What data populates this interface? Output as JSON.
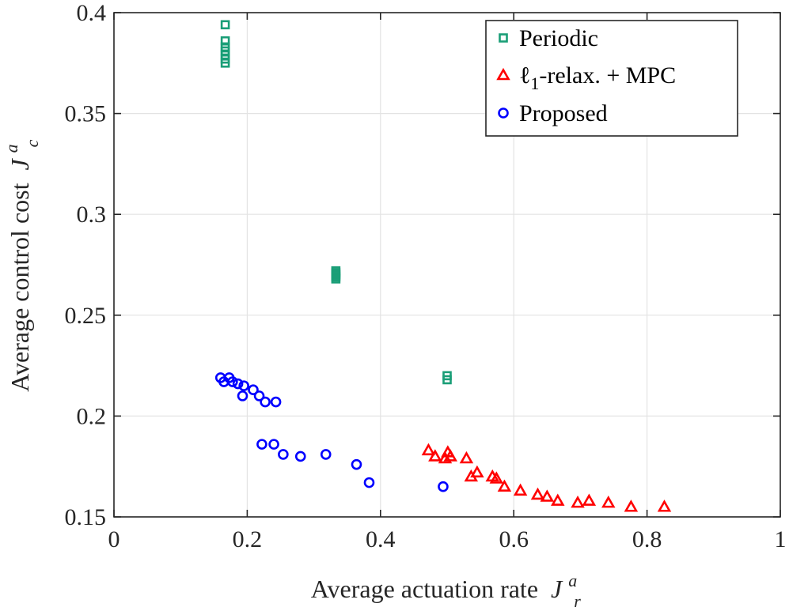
{
  "chart_data": {
    "type": "scatter",
    "xlabel": "Average actuation rate",
    "xlabel_symbol": "J",
    "xlabel_sup": "a",
    "xlabel_sub": "r",
    "ylabel": "Average control cost",
    "ylabel_symbol": "J",
    "ylabel_sup": "a",
    "ylabel_sub": "c",
    "xlim": [
      0,
      1
    ],
    "ylim": [
      0.15,
      0.4
    ],
    "xticks": [
      0,
      0.2,
      0.4,
      0.6,
      0.8,
      1
    ],
    "xtick_labels": [
      "0",
      "0.2",
      "0.4",
      "0.6",
      "0.8",
      "1"
    ],
    "yticks": [
      0.15,
      0.2,
      0.25,
      0.3,
      0.35,
      0.4
    ],
    "ytick_labels": [
      "0.15",
      "0.2",
      "0.25",
      "0.3",
      "0.35",
      "0.4"
    ],
    "grid": true,
    "legend_position": "top-right",
    "series": [
      {
        "name": "Periodic",
        "name_main": "Periodic",
        "name_sub": "",
        "name_tail": "",
        "marker": "square",
        "color": "#1a9e77",
        "points": [
          [
            0.167,
            0.394
          ],
          [
            0.167,
            0.386
          ],
          [
            0.167,
            0.383
          ],
          [
            0.167,
            0.381
          ],
          [
            0.167,
            0.379
          ],
          [
            0.167,
            0.377
          ],
          [
            0.167,
            0.375
          ],
          [
            0.333,
            0.272
          ],
          [
            0.333,
            0.271
          ],
          [
            0.333,
            0.27
          ],
          [
            0.333,
            0.269
          ],
          [
            0.333,
            0.268
          ],
          [
            0.5,
            0.22
          ],
          [
            0.5,
            0.218
          ]
        ]
      },
      {
        "name": "ℓ1-relax. + MPC",
        "name_main": "ℓ",
        "name_sub": "1",
        "name_tail": "-relax. + MPC",
        "marker": "triangle",
        "color": "#ff0000",
        "points": [
          [
            0.472,
            0.183
          ],
          [
            0.482,
            0.18
          ],
          [
            0.497,
            0.179
          ],
          [
            0.501,
            0.182
          ],
          [
            0.505,
            0.18
          ],
          [
            0.529,
            0.179
          ],
          [
            0.536,
            0.17
          ],
          [
            0.545,
            0.172
          ],
          [
            0.568,
            0.17
          ],
          [
            0.574,
            0.169
          ],
          [
            0.586,
            0.165
          ],
          [
            0.61,
            0.163
          ],
          [
            0.636,
            0.161
          ],
          [
            0.65,
            0.16
          ],
          [
            0.666,
            0.158
          ],
          [
            0.696,
            0.157
          ],
          [
            0.713,
            0.158
          ],
          [
            0.742,
            0.157
          ],
          [
            0.776,
            0.155
          ],
          [
            0.826,
            0.155
          ]
        ]
      },
      {
        "name": "Proposed",
        "name_main": "Proposed",
        "name_sub": "",
        "name_tail": "",
        "marker": "circle",
        "color": "#0000ff",
        "points": [
          [
            0.16,
            0.219
          ],
          [
            0.165,
            0.217
          ],
          [
            0.173,
            0.219
          ],
          [
            0.178,
            0.217
          ],
          [
            0.186,
            0.216
          ],
          [
            0.195,
            0.215
          ],
          [
            0.193,
            0.21
          ],
          [
            0.209,
            0.213
          ],
          [
            0.218,
            0.21
          ],
          [
            0.227,
            0.207
          ],
          [
            0.243,
            0.207
          ],
          [
            0.222,
            0.186
          ],
          [
            0.24,
            0.186
          ],
          [
            0.254,
            0.181
          ],
          [
            0.28,
            0.18
          ],
          [
            0.318,
            0.181
          ],
          [
            0.364,
            0.176
          ],
          [
            0.383,
            0.167
          ],
          [
            0.494,
            0.165
          ]
        ]
      }
    ]
  }
}
